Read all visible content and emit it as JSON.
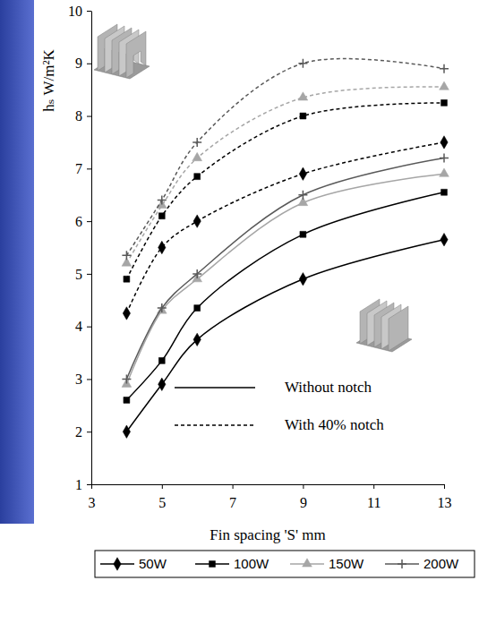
{
  "chart_data": {
    "type": "line",
    "x": [
      4,
      5,
      6,
      9,
      13
    ],
    "xlim": [
      3,
      13
    ],
    "xticks": [
      3,
      5,
      7,
      9,
      11,
      13
    ],
    "ylim": [
      1,
      10
    ],
    "yticks": [
      1,
      2,
      3,
      4,
      5,
      6,
      7,
      8,
      9,
      10
    ],
    "x_label": "Fin spacing 'S' mm",
    "y_label": "hₛ W/m²K",
    "legend": "bottom",
    "annotations": [
      {
        "text": "Without notch",
        "line_style": "solid"
      },
      {
        "text": "With 40% notch",
        "line_style": "dashed"
      }
    ],
    "series": [
      {
        "name": "50W",
        "color": "#000000",
        "marker": "diamond",
        "line_style": "solid",
        "values": [
          2.0,
          2.9,
          3.75,
          4.9,
          5.65
        ]
      },
      {
        "name": "100W",
        "color": "#000000",
        "marker": "square",
        "line_style": "solid",
        "values": [
          2.6,
          3.35,
          4.35,
          5.75,
          6.55
        ]
      },
      {
        "name": "150W",
        "color": "#a6a6a6",
        "marker": "triangle",
        "line_style": "solid",
        "values": [
          2.9,
          4.3,
          4.9,
          6.35,
          6.9
        ]
      },
      {
        "name": "200W",
        "color": "#595959",
        "marker": "cross",
        "line_style": "solid",
        "values": [
          3.0,
          4.35,
          5.0,
          6.5,
          7.2
        ]
      },
      {
        "name": "50W",
        "color": "#000000",
        "marker": "diamond",
        "line_style": "dashed",
        "values": [
          4.25,
          5.5,
          6.0,
          6.9,
          7.5
        ]
      },
      {
        "name": "100W",
        "color": "#000000",
        "marker": "square",
        "line_style": "dashed",
        "values": [
          4.9,
          6.1,
          6.85,
          8.0,
          8.25
        ]
      },
      {
        "name": "150W",
        "color": "#a6a6a6",
        "marker": "triangle",
        "line_style": "dashed",
        "values": [
          5.2,
          6.3,
          7.2,
          8.35,
          8.55
        ]
      },
      {
        "name": "200W",
        "color": "#595959",
        "marker": "cross",
        "line_style": "dashed",
        "values": [
          5.35,
          6.4,
          7.5,
          9.0,
          8.9
        ]
      }
    ]
  }
}
